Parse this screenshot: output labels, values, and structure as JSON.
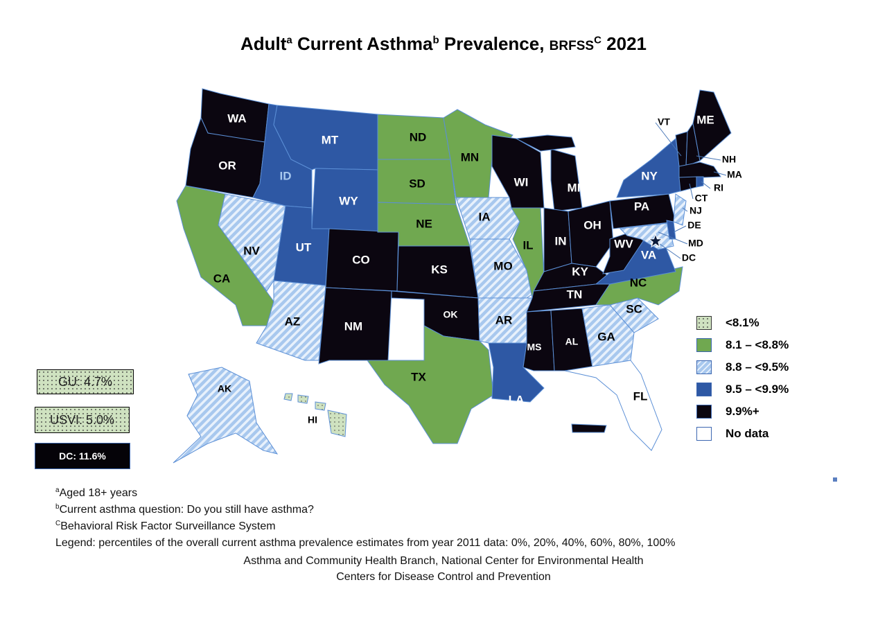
{
  "title": {
    "part1": "Adult",
    "sup1": "a",
    "part2": " Current Asthma",
    "sup2": "b",
    "part3": " Prevalence, ",
    "brfss": "BRFSS",
    "sup3": "C",
    "year": " 2021"
  },
  "colors": {
    "lt8_1": "#cfe2c0",
    "8_1_8_8": "#70a850",
    "8_8_9_5": "#a8c8ee",
    "9_5_9_9": "#2e58a4",
    "9_9_plus": "#0b0610",
    "no_data": "#ffffff",
    "border": "#5b8fd6"
  },
  "legend": [
    {
      "key": "lt8_1",
      "label": "<8.1%"
    },
    {
      "key": "8_1_8_8",
      "label": "8.1 – <8.8%"
    },
    {
      "key": "8_8_9_5",
      "label": "8.8 – <9.5%"
    },
    {
      "key": "9_5_9_9",
      "label": "9.5 – <9.9%"
    },
    {
      "key": "9_9_plus",
      "label": "9.9%+"
    },
    {
      "key": "no_data",
      "label": "No data"
    }
  ],
  "territories": {
    "gu": "GU: 4.7%",
    "usvi": "USVI: 5.0%",
    "dc": "DC: 11.6%"
  },
  "states": {
    "WA": "9_9_plus",
    "OR": "9_9_plus",
    "CA": "8_1_8_8",
    "NV": "8_8_9_5",
    "ID": "9_5_9_9",
    "MT": "9_5_9_9",
    "WY": "9_5_9_9",
    "UT": "9_5_9_9",
    "AZ": "8_8_9_5",
    "CO": "9_9_plus",
    "NM": "9_9_plus",
    "ND": "8_1_8_8",
    "SD": "8_1_8_8",
    "NE": "8_1_8_8",
    "KS": "9_9_plus",
    "OK": "9_9_plus",
    "TX": "8_1_8_8",
    "MN": "8_1_8_8",
    "IA": "8_8_9_5",
    "MO": "8_8_9_5",
    "AR": "8_8_9_5",
    "LA": "9_5_9_9",
    "WI": "9_9_plus",
    "IL": "8_1_8_8",
    "MI": "9_9_plus",
    "IN": "9_9_plus",
    "OH": "9_9_plus",
    "KY": "9_9_plus",
    "TN": "9_9_plus",
    "MS": "9_9_plus",
    "AL": "9_9_plus",
    "GA": "8_8_9_5",
    "FL": "no_data",
    "SC": "8_8_9_5",
    "NC": "8_1_8_8",
    "VA": "9_5_9_9",
    "WV": "9_9_plus",
    "PA": "9_9_plus",
    "NY": "9_5_9_9",
    "NJ": "8_8_9_5",
    "DE": "9_5_9_9",
    "MD": "8_8_9_5",
    "DC": "9_9_plus",
    "VT": "9_9_plus",
    "NH": "9_9_plus",
    "ME": "9_9_plus",
    "MA": "9_9_plus",
    "CT": "9_9_plus",
    "RI": "9_5_9_9",
    "AK": "8_8_9_5",
    "HI": "lt8_1",
    "PR": "9_9_plus"
  },
  "footnotes": [
    {
      "sup": "a",
      "text": "Aged 18+ years"
    },
    {
      "sup": "b",
      "text": "Current asthma question: Do you still have asthma?"
    },
    {
      "sup": "C",
      "text": "Behavioral  Risk Factor Surveillance System"
    },
    {
      "sup": "",
      "text": "Legend: percentiles of the overall current asthma prevalence estimates from year 2011 data: 0%, 20%, 40%, 60%, 80%, 100%"
    }
  ],
  "credits": {
    "line1": "Asthma and Community Health Branch, National Center for Environmental Health",
    "line2": "Centers for Disease Control and Prevention"
  }
}
